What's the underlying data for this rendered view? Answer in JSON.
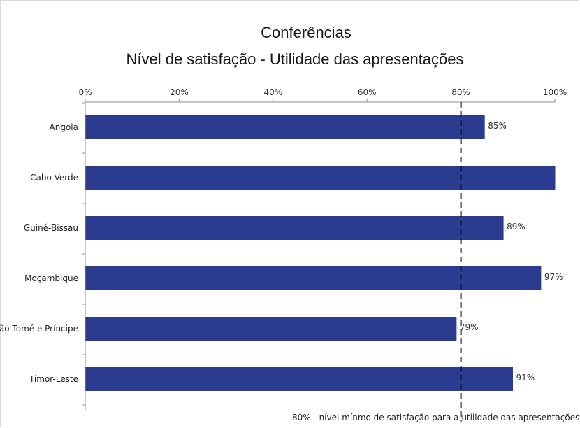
{
  "chart_data": {
    "type": "bar",
    "orientation": "horizontal",
    "title": [
      "Conferências",
      "Nível de satisfação - Utilidade das apresentações"
    ],
    "categories": [
      "Angola",
      "Cabo Verde",
      "Guiné-Bissau",
      "Moçambique",
      "São Tomé e Príncipe",
      "Timor-Leste"
    ],
    "values": [
      85,
      100,
      89,
      97,
      79,
      91
    ],
    "data_labels": [
      "85%",
      "",
      "89%",
      "97%",
      "79%",
      "91%"
    ],
    "x_ticks": [
      "0%",
      "20%",
      "40%",
      "60%",
      "80%",
      "100%"
    ],
    "xlim": [
      0,
      100
    ],
    "x_axis_position": "top",
    "grid": false,
    "bar_color": "#2b3b8f",
    "reference_line": {
      "value": 80,
      "style": "dashed",
      "label": "80% - nível mínmo de satisfação para a utilidade das apresentações"
    }
  }
}
